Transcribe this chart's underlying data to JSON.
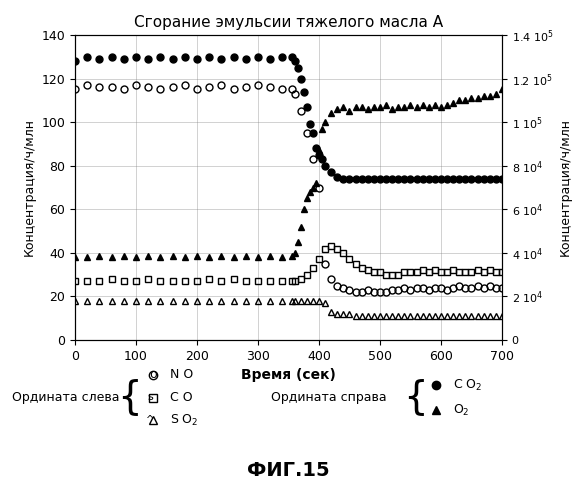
{
  "title": "Сгорание эмульсии тяжелого масла А",
  "xlabel": "Время (сек)",
  "ylabel_left": "Концентрация/ч/млн",
  "ylabel_right": "Концентрация/ч/млн",
  "xlim": [
    0,
    700
  ],
  "ylim_left": [
    0,
    140
  ],
  "ylim_right": [
    0,
    140000
  ],
  "fig_label": "ФИГ.15",
  "NO_x": [
    0,
    20,
    40,
    60,
    80,
    100,
    120,
    140,
    160,
    180,
    200,
    220,
    240,
    260,
    280,
    300,
    320,
    340,
    355,
    360,
    370,
    380,
    390,
    400,
    410,
    420,
    430,
    440,
    450,
    460,
    470,
    480,
    490,
    500,
    510,
    520,
    530,
    540,
    550,
    560,
    570,
    580,
    590,
    600,
    610,
    620,
    630,
    640,
    650,
    660,
    670,
    680,
    690,
    700
  ],
  "NO_y": [
    115,
    117,
    116,
    116,
    115,
    117,
    116,
    115,
    116,
    117,
    115,
    116,
    117,
    115,
    116,
    117,
    116,
    115,
    115,
    113,
    105,
    95,
    83,
    70,
    35,
    28,
    25,
    24,
    23,
    22,
    22,
    23,
    22,
    22,
    22,
    23,
    23,
    24,
    23,
    24,
    24,
    23,
    24,
    24,
    23,
    24,
    25,
    24,
    24,
    25,
    24,
    25,
    24,
    24
  ],
  "CO_x": [
    0,
    20,
    40,
    60,
    80,
    100,
    120,
    140,
    160,
    180,
    200,
    220,
    240,
    260,
    280,
    300,
    320,
    340,
    355,
    360,
    370,
    380,
    390,
    400,
    410,
    420,
    430,
    440,
    450,
    460,
    470,
    480,
    490,
    500,
    510,
    520,
    530,
    540,
    550,
    560,
    570,
    580,
    590,
    600,
    610,
    620,
    630,
    640,
    650,
    660,
    670,
    680,
    690,
    700
  ],
  "CO_y": [
    27,
    27,
    27,
    28,
    27,
    27,
    28,
    27,
    27,
    27,
    27,
    28,
    27,
    28,
    27,
    27,
    27,
    27,
    27,
    27,
    28,
    30,
    33,
    37,
    42,
    43,
    42,
    40,
    37,
    35,
    33,
    32,
    31,
    31,
    30,
    30,
    30,
    31,
    31,
    31,
    32,
    31,
    32,
    31,
    31,
    32,
    31,
    31,
    31,
    32,
    31,
    32,
    31,
    31
  ],
  "SO2_x": [
    0,
    20,
    40,
    60,
    80,
    100,
    120,
    140,
    160,
    180,
    200,
    220,
    240,
    260,
    280,
    300,
    320,
    340,
    355,
    360,
    370,
    380,
    390,
    400,
    410,
    420,
    430,
    440,
    450,
    460,
    470,
    480,
    490,
    500,
    510,
    520,
    530,
    540,
    550,
    560,
    570,
    580,
    590,
    600,
    610,
    620,
    630,
    640,
    650,
    660,
    670,
    680,
    690,
    700
  ],
  "SO2_y": [
    18,
    18,
    18,
    18,
    18,
    18,
    18,
    18,
    18,
    18,
    18,
    18,
    18,
    18,
    18,
    18,
    18,
    18,
    18,
    18,
    18,
    18,
    18,
    18,
    17,
    13,
    12,
    12,
    12,
    11,
    11,
    11,
    11,
    11,
    11,
    11,
    11,
    11,
    11,
    11,
    11,
    11,
    11,
    11,
    11,
    11,
    11,
    11,
    11,
    11,
    11,
    11,
    11,
    11
  ],
  "CO2_x": [
    0,
    20,
    40,
    60,
    80,
    100,
    120,
    140,
    160,
    180,
    200,
    220,
    240,
    260,
    280,
    300,
    320,
    340,
    355,
    360,
    365,
    370,
    375,
    380,
    385,
    390,
    395,
    400,
    405,
    410,
    420,
    430,
    440,
    450,
    460,
    470,
    480,
    490,
    500,
    510,
    520,
    530,
    540,
    550,
    560,
    570,
    580,
    590,
    600,
    610,
    620,
    630,
    640,
    650,
    660,
    670,
    680,
    690,
    700
  ],
  "CO2_y": [
    128000,
    130000,
    129000,
    130000,
    129000,
    130000,
    129000,
    130000,
    129000,
    130000,
    129000,
    130000,
    129000,
    130000,
    129000,
    130000,
    129000,
    130000,
    130000,
    128000,
    125000,
    120000,
    114000,
    107000,
    99000,
    95000,
    88000,
    85000,
    83000,
    80000,
    77000,
    75000,
    74000,
    74000,
    74000,
    74000,
    74000,
    74000,
    74000,
    74000,
    74000,
    74000,
    74000,
    74000,
    74000,
    74000,
    74000,
    74000,
    74000,
    74000,
    74000,
    74000,
    74000,
    74000,
    74000,
    74000,
    74000,
    74000,
    74000
  ],
  "O2_x": [
    0,
    20,
    40,
    60,
    80,
    100,
    120,
    140,
    160,
    180,
    200,
    220,
    240,
    260,
    280,
    300,
    320,
    340,
    355,
    360,
    365,
    370,
    375,
    380,
    385,
    390,
    395,
    400,
    405,
    410,
    420,
    430,
    440,
    450,
    460,
    470,
    480,
    490,
    500,
    510,
    520,
    530,
    540,
    550,
    560,
    570,
    580,
    590,
    600,
    610,
    620,
    630,
    640,
    650,
    660,
    670,
    680,
    690,
    700
  ],
  "O2_y": [
    38000,
    38000,
    38500,
    38000,
    38500,
    38000,
    38500,
    38000,
    38500,
    38000,
    38500,
    38000,
    38500,
    38000,
    38500,
    38000,
    38500,
    38000,
    38500,
    40000,
    45000,
    52000,
    60000,
    65000,
    68000,
    70000,
    72000,
    87000,
    97000,
    100000,
    104000,
    106000,
    107000,
    105000,
    107000,
    107000,
    106000,
    107000,
    107000,
    108000,
    106000,
    107000,
    107000,
    108000,
    107000,
    108000,
    107000,
    108000,
    107000,
    108000,
    109000,
    110000,
    110000,
    111000,
    111000,
    112000,
    112000,
    113000,
    115000
  ],
  "right_ticks": [
    0,
    20000,
    40000,
    60000,
    80000,
    100000,
    120000,
    140000
  ],
  "right_tick_labels": [
    "0",
    "2 10$^4$",
    "4 10$^4$",
    "6 10$^4$",
    "8 10$^4$",
    "1 10$^5$",
    "1.2 10$^5$",
    "1.4 10$^5$"
  ]
}
